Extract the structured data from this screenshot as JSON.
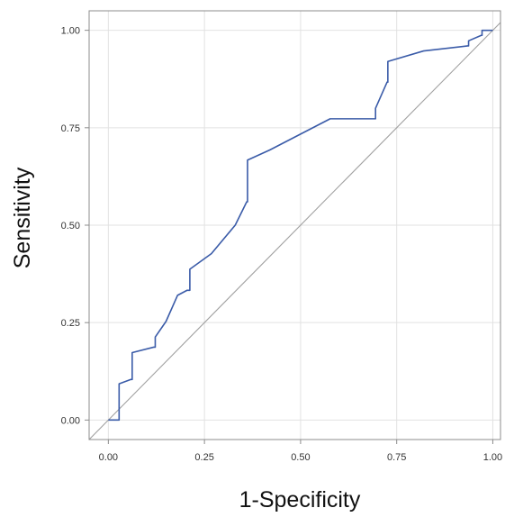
{
  "chart_data": {
    "type": "line",
    "title": "",
    "xlabel": "1-Specificity",
    "ylabel": "Sensitivity",
    "xlim": [
      -0.05,
      1.02
    ],
    "ylim": [
      -0.05,
      1.05
    ],
    "x_ticks": [
      0,
      0.25,
      0.5,
      0.75,
      1
    ],
    "y_ticks": [
      0,
      0.25,
      0.5,
      0.75,
      1
    ],
    "x_tick_labels": [
      "0.00",
      "0.25",
      "0.50",
      "0.75",
      "1.00"
    ],
    "y_tick_labels": [
      "0.00",
      "0.25",
      "0.50",
      "0.75",
      "1.00"
    ],
    "grid": true,
    "legend": "none",
    "series": [
      {
        "color": "#3a5ba8",
        "points": [
          [
            0.0,
            0.0
          ],
          [
            0.028,
            0.0
          ],
          [
            0.028,
            0.093
          ],
          [
            0.058,
            0.104
          ],
          [
            0.062,
            0.104
          ],
          [
            0.062,
            0.173
          ],
          [
            0.118,
            0.187
          ],
          [
            0.122,
            0.187
          ],
          [
            0.122,
            0.213
          ],
          [
            0.15,
            0.253
          ],
          [
            0.18,
            0.32
          ],
          [
            0.205,
            0.333
          ],
          [
            0.212,
            0.333
          ],
          [
            0.212,
            0.387
          ],
          [
            0.268,
            0.427
          ],
          [
            0.33,
            0.5
          ],
          [
            0.36,
            0.56
          ],
          [
            0.362,
            0.56
          ],
          [
            0.362,
            0.667
          ],
          [
            0.42,
            0.693
          ],
          [
            0.577,
            0.773
          ],
          [
            0.695,
            0.773
          ],
          [
            0.695,
            0.8
          ],
          [
            0.725,
            0.867
          ],
          [
            0.727,
            0.867
          ],
          [
            0.727,
            0.92
          ],
          [
            0.82,
            0.947
          ],
          [
            0.935,
            0.96
          ],
          [
            0.937,
            0.96
          ],
          [
            0.937,
            0.973
          ],
          [
            0.97,
            0.987
          ],
          [
            0.972,
            0.987
          ],
          [
            0.972,
            1.0
          ],
          [
            1.0,
            1.0
          ]
        ]
      },
      {
        "color": "#a0a0a0",
        "points": [
          [
            -0.05,
            -0.05
          ],
          [
            1.02,
            1.02
          ]
        ]
      }
    ]
  }
}
